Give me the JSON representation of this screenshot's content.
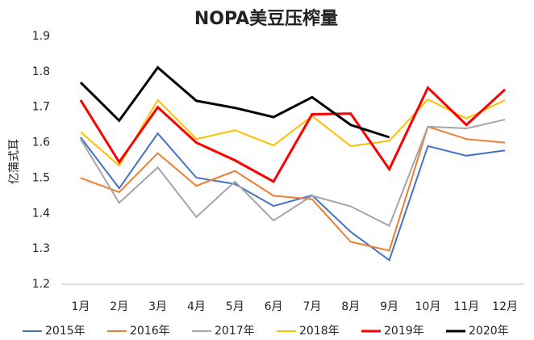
{
  "chart_data": {
    "type": "line",
    "title": "NOPA美豆压榨量",
    "y_label": "亿蒲式耳",
    "categories": [
      "1月",
      "2月",
      "3月",
      "4月",
      "5月",
      "6月",
      "7月",
      "8月",
      "9月",
      "10月",
      "11月",
      "12月"
    ],
    "series": [
      {
        "name": "2015年",
        "color": "#4472c4",
        "values": [
          1.615,
          1.471,
          1.626,
          1.501,
          1.483,
          1.421,
          1.451,
          1.348,
          1.268,
          1.59,
          1.563,
          1.578
        ]
      },
      {
        "name": "2016年",
        "color": "#ed7d31",
        "values": [
          1.5,
          1.46,
          1.57,
          1.478,
          1.52,
          1.45,
          1.44,
          1.32,
          1.295,
          1.645,
          1.61,
          1.6
        ]
      },
      {
        "name": "2017年",
        "color": "#a5a5a5",
        "values": [
          1.61,
          1.43,
          1.53,
          1.39,
          1.49,
          1.38,
          1.45,
          1.42,
          1.365,
          1.645,
          1.64,
          1.665
        ]
      },
      {
        "name": "2018年",
        "color": "#ffc000",
        "values": [
          1.63,
          1.535,
          1.72,
          1.61,
          1.635,
          1.592,
          1.675,
          1.59,
          1.605,
          1.722,
          1.668,
          1.72
        ]
      },
      {
        "name": "2019年",
        "color": "#ff0000",
        "values": [
          1.72,
          1.545,
          1.7,
          1.6,
          1.55,
          1.49,
          1.68,
          1.682,
          1.525,
          1.755,
          1.65,
          1.75
        ]
      },
      {
        "name": "2020年",
        "color": "#000000",
        "values": [
          1.77,
          1.662,
          1.812,
          1.718,
          1.698,
          1.672,
          1.728,
          1.65,
          1.615,
          null,
          null,
          null
        ]
      }
    ],
    "ylim": [
      1.2,
      1.9
    ],
    "yticks": [
      1.2,
      1.3,
      1.4,
      1.5,
      1.6,
      1.7,
      1.8,
      1.9
    ],
    "legend": "bottom"
  }
}
